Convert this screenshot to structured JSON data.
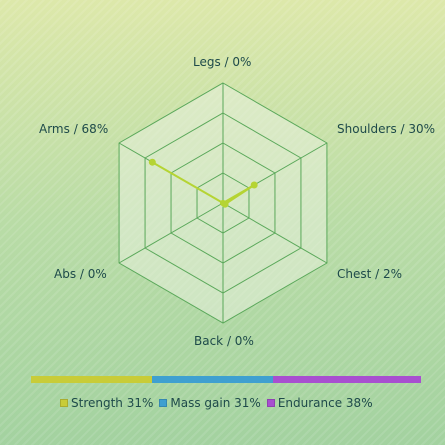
{
  "radar": {
    "axes": [
      {
        "name": "Legs",
        "label": "Legs / 0%",
        "value": 0
      },
      {
        "name": "Shoulders",
        "label": "Shoulders / 30%",
        "value": 30
      },
      {
        "name": "Chest",
        "label": "Chest / 2%",
        "value": 2
      },
      {
        "name": "Back",
        "label": "Back / 0%",
        "value": 0
      },
      {
        "name": "Abs",
        "label": "Abs / 0%",
        "value": 0
      },
      {
        "name": "Arms",
        "label": "Arms / 68%",
        "value": 68
      }
    ],
    "max": 100,
    "rings": 4,
    "line_color": "#b5d433",
    "grid_color": "#5aa85a",
    "fill_color": "#e8f0dc"
  },
  "distribution": {
    "segments": [
      {
        "name": "Strength",
        "label": "Strength 31%",
        "value": 31,
        "color": "#c8cc38"
      },
      {
        "name": "Mass gain",
        "label": "Mass gain 31%",
        "value": 31,
        "color": "#3fa0d0"
      },
      {
        "name": "Endurance",
        "label": "Endurance 38%",
        "value": 38,
        "color": "#a84fd0"
      }
    ]
  },
  "chart_data": {
    "type": "radar",
    "categories": [
      "Legs",
      "Shoulders",
      "Chest",
      "Back",
      "Abs",
      "Arms"
    ],
    "values": [
      0,
      30,
      2,
      0,
      0,
      68
    ],
    "range": [
      0,
      100
    ]
  }
}
